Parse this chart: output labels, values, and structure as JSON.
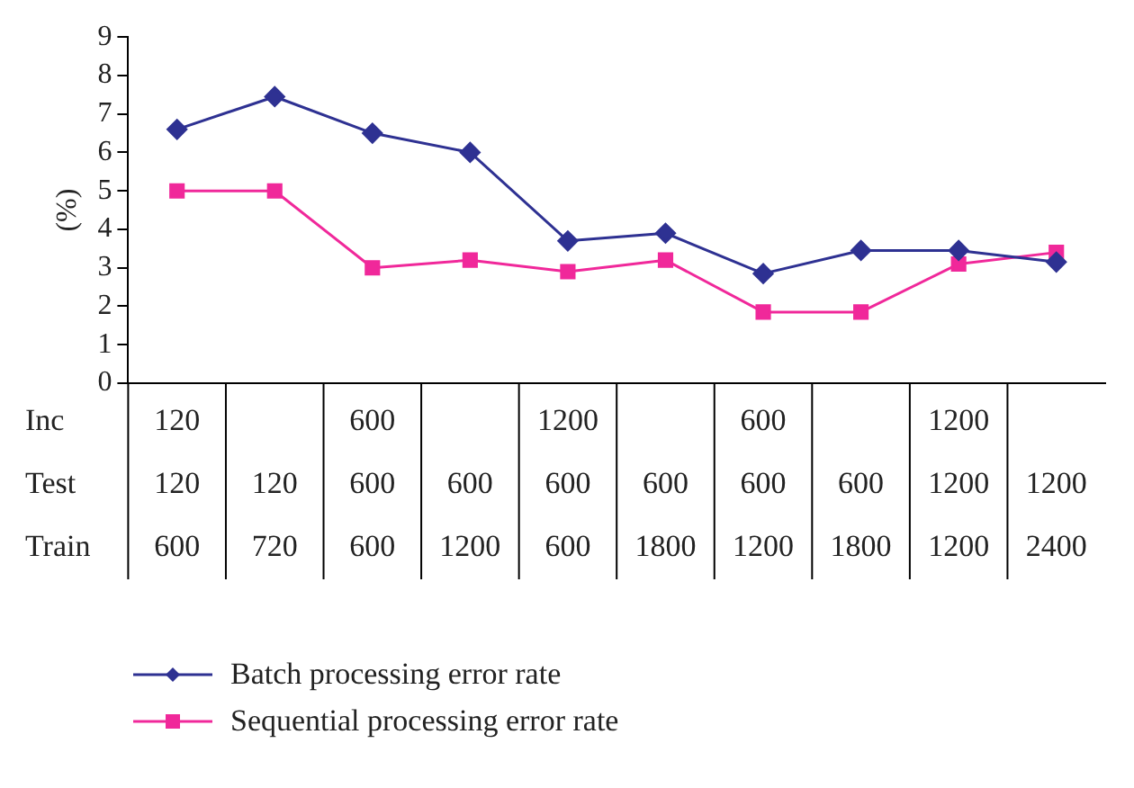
{
  "chart_data": {
    "type": "line",
    "ylabel": "(%)",
    "categories": [
      "120\n120\n600",
      "\n120\n720",
      "600\n600\n600",
      "\n600\n1200",
      "1200\n600\n600",
      "\n600\n1800",
      "600\n600\n1200",
      "\n600\n1800",
      "1200\n1200\n1200",
      "\n1200\n2400"
    ],
    "annotations": [
      "Inc",
      "Test",
      "Train"
    ],
    "series": [
      {
        "name": "Batch processing error rate",
        "color": "#2e3192",
        "marker": "diamond",
        "values": [
          6.6,
          7.45,
          6.5,
          6.0,
          3.7,
          3.9,
          2.85,
          3.45,
          3.45,
          3.15
        ]
      },
      {
        "name": "Sequential processing error rate",
        "color": "#f0289a",
        "marker": "square",
        "values": [
          5.0,
          5.0,
          3.0,
          3.2,
          2.9,
          3.2,
          1.85,
          1.85,
          3.1,
          3.4
        ]
      }
    ],
    "ylim": [
      0,
      9
    ],
    "yticks": [
      0,
      1,
      2,
      3,
      4,
      5,
      6,
      7,
      8,
      9
    ],
    "grid": false,
    "legend": "bottom left",
    "line_style": "solid"
  }
}
